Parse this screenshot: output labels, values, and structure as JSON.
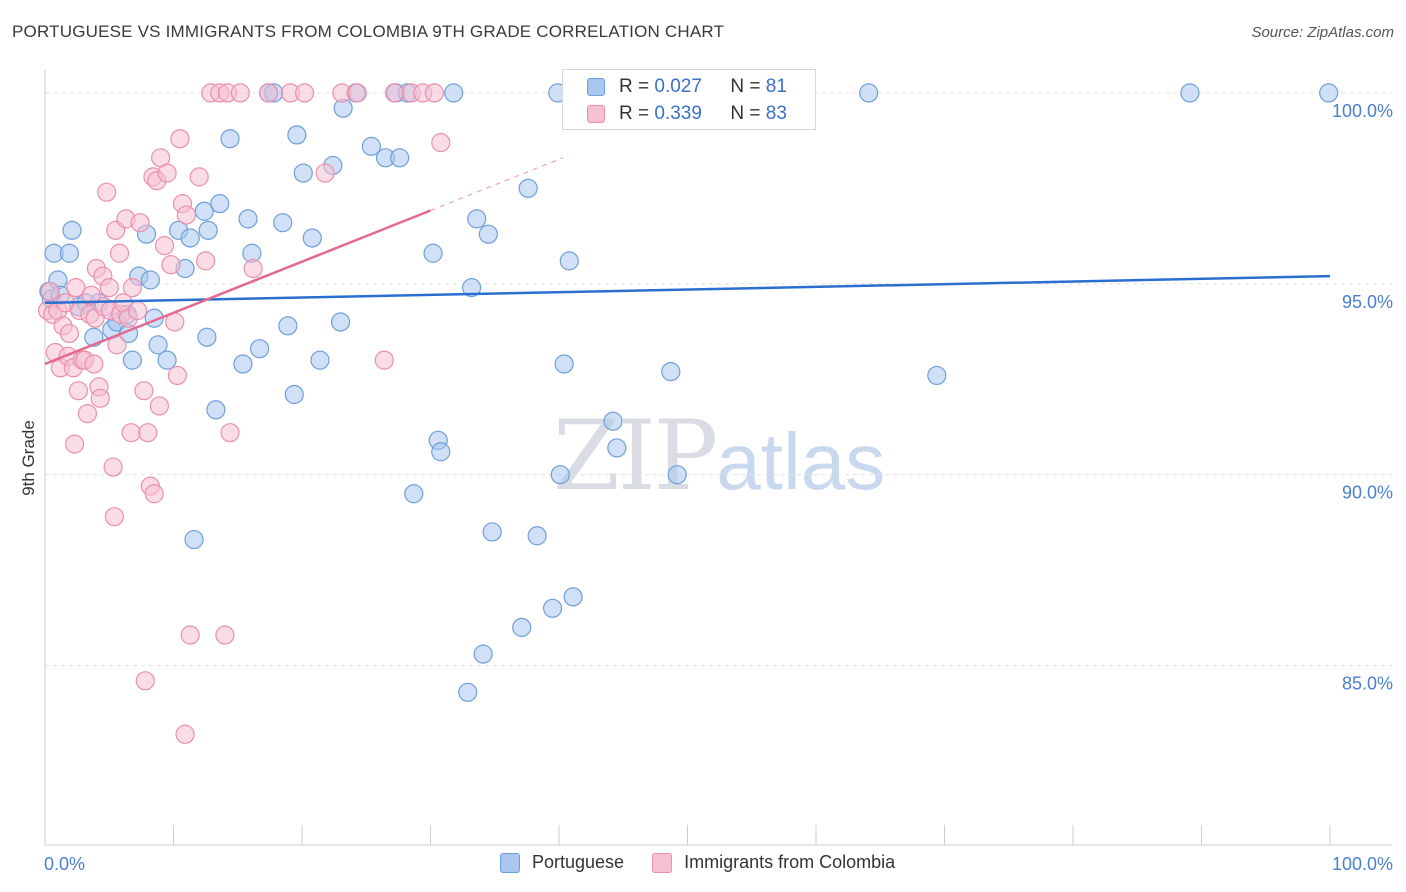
{
  "header": {
    "title": "PORTUGUESE VS IMMIGRANTS FROM COLOMBIA 9TH GRADE CORRELATION CHART",
    "source": "Source: ZipAtlas.com"
  },
  "watermark": {
    "zip": "ZIP",
    "atlas": "atlas"
  },
  "legend": {
    "r_label": "R =",
    "n_label": "N =",
    "series": [
      {
        "name": "Portuguese",
        "r": "0.027",
        "n": "81"
      },
      {
        "name": "Immigrants from Colombia",
        "r": "0.339",
        "n": "83"
      }
    ]
  },
  "colors": {
    "blue_fill": "#a9c7ee",
    "blue_stroke": "#6f9fd9",
    "blue_line": "#2a6fd0",
    "pink_fill": "#f6bfd2",
    "pink_stroke": "#eb8fae",
    "pink_line": "#e4698f",
    "axis_label": "#4a7fcf",
    "grid": "#e2e2e2"
  },
  "chart_data": {
    "type": "scatter",
    "title": "PORTUGUESE VS IMMIGRANTS FROM COLOMBIA 9TH GRADE CORRELATION CHART",
    "xlabel": "",
    "ylabel": "9th Grade",
    "xlim": [
      0,
      100
    ],
    "ylim": [
      80.3,
      100.6
    ],
    "x_tick_labels": [
      "0.0%",
      "100.0%"
    ],
    "y_ticks": [
      85,
      90,
      95,
      100
    ],
    "y_tick_labels": [
      "85.0%",
      "90.0%",
      "95.0%",
      "100.0%"
    ],
    "grid": true,
    "legend_position": "top-center",
    "series": [
      {
        "name": "Portuguese",
        "color": "#6f9fd9",
        "trend": {
          "x": [
            0,
            100
          ],
          "y": [
            94.5,
            95.2
          ],
          "dashed_from": null
        },
        "points": [
          [
            0.3,
            94.8
          ],
          [
            0.5,
            94.6
          ],
          [
            0.7,
            95.8
          ],
          [
            1.0,
            95.1
          ],
          [
            1.2,
            94.7
          ],
          [
            1.9,
            95.8
          ],
          [
            2.1,
            96.4
          ],
          [
            2.6,
            94.4
          ],
          [
            3.2,
            94.5
          ],
          [
            3.8,
            93.6
          ],
          [
            4.2,
            94.5
          ],
          [
            5.2,
            93.8
          ],
          [
            5.6,
            94.0
          ],
          [
            6.4,
            94.2
          ],
          [
            6.5,
            93.7
          ],
          [
            6.8,
            93.0
          ],
          [
            7.3,
            95.2
          ],
          [
            7.9,
            96.3
          ],
          [
            8.2,
            95.1
          ],
          [
            8.5,
            94.1
          ],
          [
            8.8,
            93.4
          ],
          [
            9.5,
            93.0
          ],
          [
            10.4,
            96.4
          ],
          [
            10.9,
            95.4
          ],
          [
            11.3,
            96.2
          ],
          [
            11.6,
            88.3
          ],
          [
            12.4,
            96.9
          ],
          [
            12.6,
            93.6
          ],
          [
            12.7,
            96.4
          ],
          [
            13.3,
            91.7
          ],
          [
            13.6,
            97.1
          ],
          [
            14.4,
            98.8
          ],
          [
            15.4,
            92.9
          ],
          [
            15.8,
            96.7
          ],
          [
            16.1,
            95.8
          ],
          [
            16.7,
            93.3
          ],
          [
            17.4,
            100.0
          ],
          [
            17.8,
            100.0
          ],
          [
            18.5,
            96.6
          ],
          [
            18.9,
            93.9
          ],
          [
            19.4,
            92.1
          ],
          [
            19.6,
            98.9
          ],
          [
            20.1,
            97.9
          ],
          [
            20.8,
            96.2
          ],
          [
            21.4,
            93.0
          ],
          [
            22.4,
            98.1
          ],
          [
            23.0,
            94.0
          ],
          [
            23.2,
            99.6
          ],
          [
            24.2,
            100.0
          ],
          [
            25.4,
            98.6
          ],
          [
            26.5,
            98.3
          ],
          [
            27.3,
            100.0
          ],
          [
            27.6,
            98.3
          ],
          [
            28.2,
            100.0
          ],
          [
            28.7,
            89.5
          ],
          [
            30.2,
            95.8
          ],
          [
            30.6,
            90.9
          ],
          [
            30.8,
            90.6
          ],
          [
            31.8,
            100.0
          ],
          [
            32.9,
            84.3
          ],
          [
            33.2,
            94.9
          ],
          [
            33.6,
            96.7
          ],
          [
            34.1,
            85.3
          ],
          [
            34.5,
            96.3
          ],
          [
            34.8,
            88.5
          ],
          [
            37.1,
            86.0
          ],
          [
            37.6,
            97.5
          ],
          [
            38.3,
            88.4
          ],
          [
            39.5,
            86.5
          ],
          [
            39.9,
            100.0
          ],
          [
            40.1,
            90.0
          ],
          [
            40.4,
            92.9
          ],
          [
            40.8,
            95.6
          ],
          [
            41.1,
            86.8
          ],
          [
            44.2,
            91.4
          ],
          [
            44.5,
            90.7
          ],
          [
            48.7,
            92.7
          ],
          [
            49.2,
            90.0
          ],
          [
            64.1,
            100.0
          ],
          [
            69.4,
            92.6
          ],
          [
            89.1,
            100.0
          ],
          [
            99.9,
            100.0
          ]
        ]
      },
      {
        "name": "Immigrants from Colombia",
        "color": "#eb8fae",
        "trend": {
          "x": [
            0,
            40.3
          ],
          "y": [
            92.9,
            98.3
          ],
          "dashed_from": 30.0
        },
        "points": [
          [
            0.2,
            94.3
          ],
          [
            0.4,
            94.8
          ],
          [
            0.6,
            94.2
          ],
          [
            0.8,
            93.2
          ],
          [
            1.0,
            94.3
          ],
          [
            1.2,
            92.8
          ],
          [
            1.4,
            93.9
          ],
          [
            1.6,
            94.5
          ],
          [
            1.8,
            93.1
          ],
          [
            1.9,
            93.7
          ],
          [
            2.2,
            92.8
          ],
          [
            2.3,
            90.8
          ],
          [
            2.4,
            94.9
          ],
          [
            2.6,
            92.2
          ],
          [
            2.7,
            94.3
          ],
          [
            2.9,
            93.0
          ],
          [
            3.1,
            93.0
          ],
          [
            3.3,
            91.6
          ],
          [
            3.5,
            94.2
          ],
          [
            3.6,
            94.7
          ],
          [
            3.8,
            92.9
          ],
          [
            3.9,
            94.1
          ],
          [
            4.0,
            95.4
          ],
          [
            4.2,
            92.3
          ],
          [
            4.3,
            92.0
          ],
          [
            4.5,
            95.2
          ],
          [
            4.6,
            94.4
          ],
          [
            4.8,
            97.4
          ],
          [
            5.0,
            94.9
          ],
          [
            5.1,
            94.3
          ],
          [
            5.3,
            90.2
          ],
          [
            5.4,
            88.9
          ],
          [
            5.5,
            96.4
          ],
          [
            5.6,
            93.4
          ],
          [
            5.8,
            95.8
          ],
          [
            5.9,
            94.2
          ],
          [
            6.1,
            94.5
          ],
          [
            6.3,
            96.7
          ],
          [
            6.5,
            94.1
          ],
          [
            6.7,
            91.1
          ],
          [
            6.8,
            94.9
          ],
          [
            7.2,
            94.3
          ],
          [
            7.4,
            96.6
          ],
          [
            7.7,
            92.2
          ],
          [
            7.8,
            84.6
          ],
          [
            8.0,
            91.1
          ],
          [
            8.2,
            89.7
          ],
          [
            8.4,
            97.8
          ],
          [
            8.5,
            89.5
          ],
          [
            8.7,
            97.7
          ],
          [
            8.9,
            91.8
          ],
          [
            9.0,
            98.3
          ],
          [
            9.3,
            96.0
          ],
          [
            9.5,
            97.9
          ],
          [
            9.8,
            95.5
          ],
          [
            10.1,
            94.0
          ],
          [
            10.3,
            92.6
          ],
          [
            10.5,
            98.8
          ],
          [
            10.7,
            97.1
          ],
          [
            10.9,
            83.2
          ],
          [
            11.0,
            96.8
          ],
          [
            11.3,
            85.8
          ],
          [
            12.0,
            97.8
          ],
          [
            12.5,
            95.6
          ],
          [
            12.9,
            100.0
          ],
          [
            13.6,
            100.0
          ],
          [
            14.0,
            85.8
          ],
          [
            14.2,
            100.0
          ],
          [
            14.4,
            91.1
          ],
          [
            15.2,
            100.0
          ],
          [
            16.2,
            95.4
          ],
          [
            17.4,
            100.0
          ],
          [
            19.1,
            100.0
          ],
          [
            20.2,
            100.0
          ],
          [
            21.8,
            97.9
          ],
          [
            23.1,
            100.0
          ],
          [
            24.3,
            100.0
          ],
          [
            26.4,
            93.0
          ],
          [
            27.2,
            100.0
          ],
          [
            28.5,
            100.0
          ],
          [
            29.4,
            100.0
          ],
          [
            30.3,
            100.0
          ],
          [
            30.8,
            98.7
          ]
        ]
      }
    ]
  }
}
